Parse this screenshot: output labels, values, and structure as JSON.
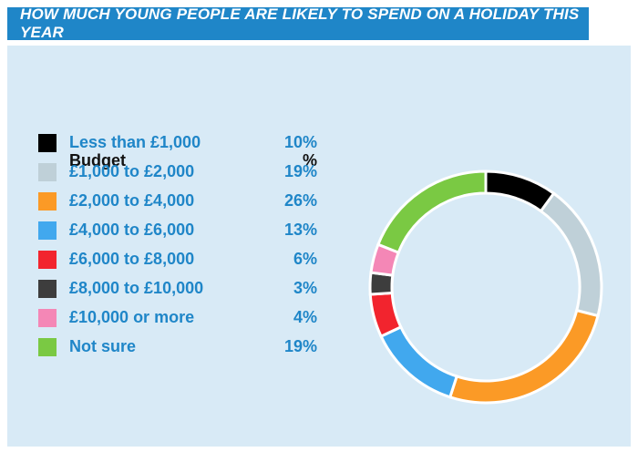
{
  "title": "HOW MUCH YOUNG PEOPLE ARE LIKELY TO SPEND ON A HOLIDAY THIS YEAR",
  "legend": {
    "header_budget": "Budget",
    "header_pct": "%"
  },
  "chart_data": {
    "type": "pie",
    "categories": [
      "Less than £1,000",
      "£1,000 to £2,000",
      "£2,000 to £4,000",
      "£4,000 to £6,000",
      "£6,000 to £8,000",
      "£8,000 to £10,000",
      "£10,000 or more",
      "Not sure"
    ],
    "values": [
      10,
      19,
      26,
      13,
      6,
      3,
      4,
      19
    ],
    "value_labels": [
      "10%",
      "19%",
      "26%",
      "13%",
      "6%",
      "3%",
      "4%",
      "19%"
    ],
    "colors": [
      "#000000",
      "#bfd0d8",
      "#fb9a26",
      "#41a8ee",
      "#f2242e",
      "#3d3d3d",
      "#f487b6",
      "#7ac943"
    ],
    "style": "donut"
  },
  "colors": {
    "title_bar": "#1f86c8",
    "panel_bg": "#d8eaf6",
    "label_text": "#1f86c8"
  }
}
